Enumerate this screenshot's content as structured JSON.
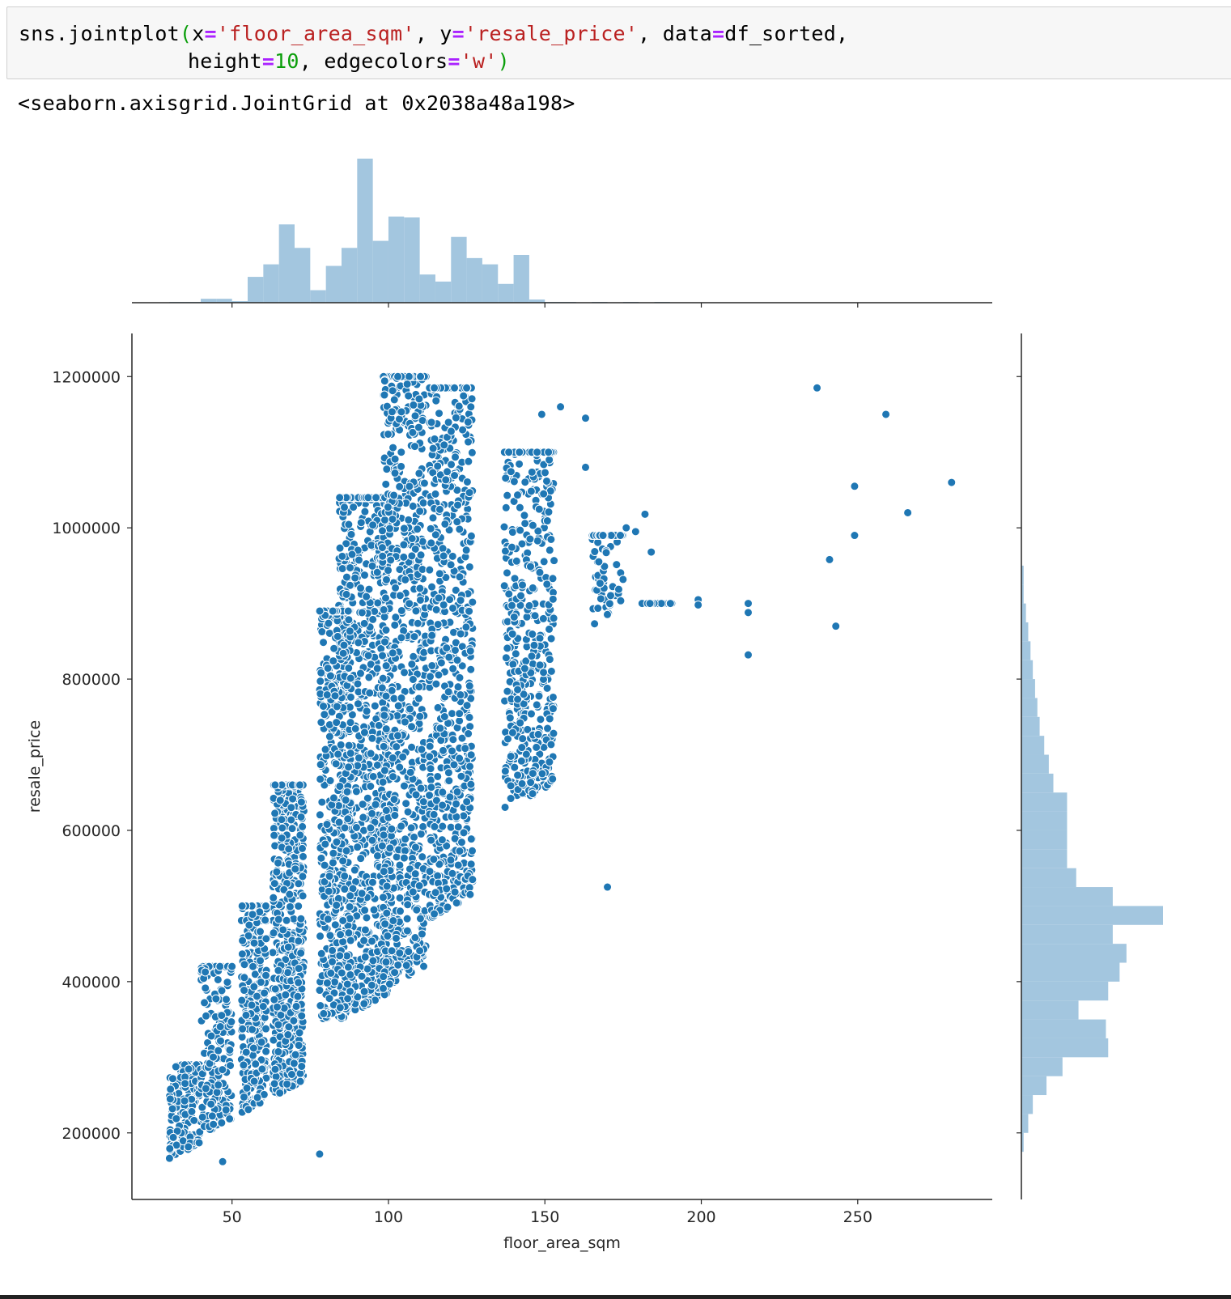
{
  "notebook": {
    "code": {
      "fn": "sns.jointplot",
      "x_kw": "x",
      "x_val": "'floor_area_sqm'",
      "y_kw": "y",
      "y_val": "'resale_price'",
      "data_kw": "data",
      "data_val": "df_sorted,",
      "height_kw": "height",
      "height_val": "10",
      "edge_kw": "edgecolors",
      "edge_val": "'w'"
    },
    "output": "<seaborn.axisgrid.JointGrid at 0x2038a48a198>"
  },
  "chart_data": {
    "type": "scatter",
    "title": "",
    "xlabel": "floor_area_sqm",
    "ylabel": "resale_price",
    "xlim": [
      18,
      293
    ],
    "ylim": [
      112000,
      1257000
    ],
    "x_ticks": [
      50,
      100,
      150,
      200,
      250
    ],
    "y_ticks": [
      200000,
      400000,
      600000,
      800000,
      1000000,
      1200000
    ],
    "grid": false,
    "colors": {
      "scatter": "#1f77b4",
      "histogram": "#a3c6df",
      "edge": "#ffffff"
    },
    "outlier_points": [
      {
        "x": 237,
        "y": 1185000
      },
      {
        "x": 259,
        "y": 1150000
      },
      {
        "x": 280,
        "y": 1060000
      },
      {
        "x": 249,
        "y": 1055000
      },
      {
        "x": 266,
        "y": 1020000
      },
      {
        "x": 249,
        "y": 990000
      },
      {
        "x": 241,
        "y": 958000
      },
      {
        "x": 243,
        "y": 870000
      },
      {
        "x": 215,
        "y": 900000
      },
      {
        "x": 215,
        "y": 888000
      },
      {
        "x": 199,
        "y": 905000
      },
      {
        "x": 199,
        "y": 898000
      },
      {
        "x": 215,
        "y": 832000
      },
      {
        "x": 184,
        "y": 968000
      },
      {
        "x": 182,
        "y": 1018000
      },
      {
        "x": 179,
        "y": 995000
      },
      {
        "x": 176,
        "y": 1000000
      },
      {
        "x": 170,
        "y": 525000
      },
      {
        "x": 149,
        "y": 1150000
      },
      {
        "x": 155,
        "y": 1160000
      },
      {
        "x": 163,
        "y": 1145000
      },
      {
        "x": 163,
        "y": 1080000
      },
      {
        "x": 47,
        "y": 162000
      },
      {
        "x": 78,
        "y": 172000
      },
      {
        "x": 103,
        "y": 1200000
      },
      {
        "x": 106,
        "y": 1190000
      }
    ],
    "density_clusters": [
      {
        "x": 68,
        "xw": 5,
        "y_min": 175000,
        "y_max": 660000,
        "weight": 22
      },
      {
        "x": 92,
        "xw": 8,
        "y_min": 230000,
        "y_max": 1040000,
        "weight": 32
      },
      {
        "x": 105,
        "xw": 7,
        "y_min": 240000,
        "y_max": 1200000,
        "weight": 30
      },
      {
        "x": 120,
        "xw": 7,
        "y_min": 300000,
        "y_max": 1185000,
        "weight": 26
      },
      {
        "x": 145,
        "xw": 8,
        "y_min": 390000,
        "y_max": 1100000,
        "weight": 20
      },
      {
        "x": 57,
        "xw": 4,
        "y_min": 175000,
        "y_max": 500000,
        "weight": 12
      },
      {
        "x": 83,
        "xw": 5,
        "y_min": 240000,
        "y_max": 890000,
        "weight": 16
      },
      {
        "x": 35,
        "xw": 5,
        "y_min": 165000,
        "y_max": 290000,
        "weight": 6
      },
      {
        "x": 45,
        "xw": 5,
        "y_min": 175000,
        "y_max": 420000,
        "weight": 7
      },
      {
        "x": 170,
        "xw": 5,
        "y_min": 570000,
        "y_max": 990000,
        "weight": 6
      },
      {
        "x": 186,
        "xw": 5,
        "y_min": 660000,
        "y_max": 900000,
        "weight": 5
      }
    ],
    "x_histogram": {
      "bin_edges": [
        30,
        35,
        40,
        45,
        50,
        55,
        60,
        65,
        70,
        75,
        80,
        85,
        90,
        95,
        100,
        105,
        110,
        115,
        120,
        125,
        130,
        135,
        140,
        145,
        150,
        155,
        160,
        165,
        170,
        175,
        180,
        185,
        190,
        195
      ],
      "counts": [
        1,
        1,
        5,
        5,
        2,
        33,
        49,
        100,
        70,
        16,
        47,
        70,
        184,
        79,
        110,
        109,
        36,
        27,
        84,
        57,
        49,
        24,
        61,
        4,
        1,
        1,
        0,
        1,
        0,
        1,
        0,
        1,
        0
      ]
    },
    "y_histogram": {
      "bin_edges": [
        175000,
        200000,
        225000,
        250000,
        275000,
        300000,
        325000,
        350000,
        375000,
        400000,
        425000,
        450000,
        475000,
        500000,
        525000,
        550000,
        575000,
        600000,
        625000,
        650000,
        675000,
        700000,
        725000,
        750000,
        775000,
        800000,
        825000,
        850000,
        875000,
        900000,
        925000,
        950000
      ],
      "counts": [
        1,
        3,
        5,
        11,
        18,
        38,
        37,
        25,
        38,
        43,
        46,
        40,
        62,
        40,
        24,
        20,
        20,
        20,
        20,
        14,
        12,
        10,
        8,
        7,
        6,
        5,
        4,
        3,
        2,
        1,
        1
      ]
    }
  }
}
